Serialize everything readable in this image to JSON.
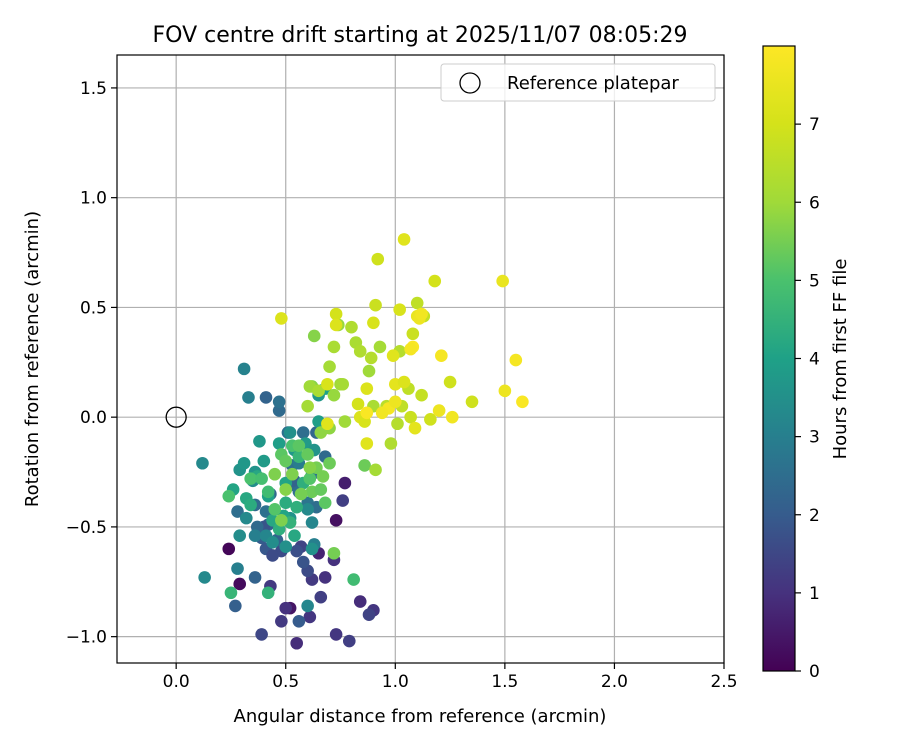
{
  "chart_data": {
    "type": "scatter",
    "title": "FOV centre drift starting at 2025/11/07 08:05:29",
    "xlabel": "Angular distance from reference (arcmin)",
    "ylabel": "Rotation from reference (arcmin)",
    "xlim": [
      -0.27,
      2.5
    ],
    "ylim": [
      -1.12,
      1.65
    ],
    "xticks": [
      0.0,
      0.5,
      1.0,
      1.5,
      2.0,
      2.5
    ],
    "xtick_labels": [
      "0.0",
      "0.5",
      "1.0",
      "1.5",
      "2.0",
      "2.5"
    ],
    "yticks": [
      -1.0,
      -0.5,
      0.0,
      0.5,
      1.0,
      1.5
    ],
    "ytick_labels": [
      "−1.0",
      "−0.5",
      "0.0",
      "0.5",
      "1.0",
      "1.5"
    ],
    "grid": true,
    "legend": {
      "placement": "top-right",
      "label": "Reference platepar"
    },
    "reference_point": {
      "x": 0.0,
      "y": 0.0
    },
    "colorbar": {
      "label": "Hours from first FF file",
      "range": [
        0,
        8
      ],
      "ticks": [
        0,
        1,
        2,
        3,
        4,
        5,
        6,
        7
      ],
      "tick_labels": [
        "0",
        "1",
        "2",
        "3",
        "4",
        "5",
        "6",
        "7"
      ],
      "colormap": "viridis"
    },
    "points": [
      [
        0.24,
        -0.6,
        0.1
      ],
      [
        0.29,
        -0.76,
        0.2
      ],
      [
        0.52,
        -0.87,
        0.4
      ],
      [
        0.55,
        -1.03,
        0.9
      ],
      [
        0.73,
        -0.47,
        0.3
      ],
      [
        0.77,
        -0.3,
        0.6
      ],
      [
        0.84,
        -0.84,
        0.9
      ],
      [
        0.9,
        -0.88,
        1.1
      ],
      [
        0.79,
        -1.02,
        1.3
      ],
      [
        0.73,
        -0.99,
        1.1
      ],
      [
        0.48,
        -0.93,
        1.2
      ],
      [
        0.5,
        -0.87,
        1.0
      ],
      [
        0.61,
        -0.91,
        1.1
      ],
      [
        0.65,
        -0.62,
        0.7
      ],
      [
        0.68,
        -0.73,
        1.0
      ],
      [
        0.72,
        -0.65,
        1.0
      ],
      [
        0.76,
        -0.38,
        1.3
      ],
      [
        0.62,
        -0.74,
        1.2
      ],
      [
        0.66,
        -0.82,
        1.3
      ],
      [
        0.88,
        -0.9,
        1.4
      ],
      [
        0.39,
        -0.99,
        1.5
      ],
      [
        0.48,
        -0.61,
        1.6
      ],
      [
        0.43,
        -0.77,
        1.2
      ],
      [
        0.57,
        -0.59,
        1.4
      ],
      [
        0.6,
        -0.7,
        1.6
      ],
      [
        0.58,
        -0.66,
        1.8
      ],
      [
        0.55,
        -0.61,
        1.7
      ],
      [
        0.56,
        -0.93,
        2.0
      ],
      [
        0.27,
        -0.86,
        2.1
      ],
      [
        0.36,
        -0.73,
        2.2
      ],
      [
        0.39,
        -0.55,
        2.0
      ],
      [
        0.41,
        -0.6,
        1.9
      ],
      [
        0.42,
        -0.49,
        2.1
      ],
      [
        0.46,
        -0.56,
        2.2
      ],
      [
        0.4,
        -0.5,
        1.8
      ],
      [
        0.44,
        -0.63,
        1.6
      ],
      [
        0.37,
        -0.5,
        2.4
      ],
      [
        0.28,
        -0.43,
        2.5
      ],
      [
        0.36,
        -0.4,
        2.4
      ],
      [
        0.41,
        -0.43,
        2.6
      ],
      [
        0.43,
        -0.35,
        2.3
      ],
      [
        0.52,
        -0.31,
        2.4
      ],
      [
        0.53,
        -0.22,
        2.6
      ],
      [
        0.54,
        -0.29,
        2.2
      ],
      [
        0.56,
        -0.34,
        2.5
      ],
      [
        0.6,
        -0.39,
        2.7
      ],
      [
        0.62,
        -0.26,
        2.6
      ],
      [
        0.64,
        -0.41,
        2.5
      ],
      [
        0.51,
        -0.07,
        2.6
      ],
      [
        0.56,
        -0.21,
        2.9
      ],
      [
        0.58,
        -0.07,
        2.5
      ],
      [
        0.64,
        -0.07,
        2.3
      ],
      [
        0.68,
        -0.18,
        2.4
      ],
      [
        0.41,
        0.09,
        2.2
      ],
      [
        0.47,
        0.03,
        2.4
      ],
      [
        0.47,
        0.07,
        2.6
      ],
      [
        0.33,
        0.09,
        3.0
      ],
      [
        0.31,
        0.22,
        3.1
      ],
      [
        0.12,
        -0.21,
        3.3
      ],
      [
        0.13,
        -0.73,
        3.3
      ],
      [
        0.28,
        -0.69,
        3.0
      ],
      [
        0.29,
        -0.54,
        3.4
      ],
      [
        0.32,
        -0.46,
        3.3
      ],
      [
        0.36,
        -0.54,
        3.0
      ],
      [
        0.41,
        -0.54,
        3.2
      ],
      [
        0.44,
        -0.57,
        3.4
      ],
      [
        0.5,
        -0.59,
        3.5
      ],
      [
        0.52,
        -0.46,
        3.6
      ],
      [
        0.6,
        -0.42,
        3.3
      ],
      [
        0.62,
        -0.48,
        3.2
      ],
      [
        0.63,
        -0.58,
        3.0
      ],
      [
        0.62,
        -0.6,
        3.5
      ],
      [
        0.6,
        -0.86,
        3.2
      ],
      [
        0.29,
        -0.24,
        3.6
      ],
      [
        0.31,
        -0.21,
        3.7
      ],
      [
        0.35,
        -0.29,
        3.4
      ],
      [
        0.36,
        -0.25,
        3.6
      ],
      [
        0.38,
        -0.11,
        3.7
      ],
      [
        0.4,
        -0.2,
        3.8
      ],
      [
        0.47,
        -0.12,
        3.9
      ],
      [
        0.52,
        -0.07,
        3.5
      ],
      [
        0.54,
        -0.15,
        3.7
      ],
      [
        0.59,
        -0.12,
        3.8
      ],
      [
        0.63,
        -0.15,
        3.6
      ],
      [
        0.65,
        -0.02,
        3.9
      ],
      [
        0.65,
        0.1,
        3.7
      ],
      [
        0.68,
        0.13,
        4.0
      ],
      [
        0.26,
        -0.33,
        4.1
      ],
      [
        0.32,
        -0.37,
        4.2
      ],
      [
        0.34,
        -0.4,
        4.3
      ],
      [
        0.37,
        -0.27,
        4.2
      ],
      [
        0.42,
        -0.36,
        4.0
      ],
      [
        0.44,
        -0.47,
        4.2
      ],
      [
        0.47,
        -0.51,
        4.4
      ],
      [
        0.49,
        -0.45,
        4.1
      ],
      [
        0.5,
        -0.39,
        4.3
      ],
      [
        0.5,
        -0.3,
        4.1
      ],
      [
        0.52,
        -0.48,
        4.5
      ],
      [
        0.55,
        -0.41,
        4.4
      ],
      [
        0.54,
        -0.54,
        4.2
      ],
      [
        0.56,
        -0.18,
        4.6
      ],
      [
        0.58,
        -0.3,
        4.4
      ],
      [
        0.25,
        -0.8,
        4.6
      ],
      [
        0.42,
        -0.8,
        4.5
      ],
      [
        0.81,
        -0.74,
        4.8
      ],
      [
        0.24,
        -0.36,
        5.0
      ],
      [
        0.34,
        -0.28,
        5.0
      ],
      [
        0.39,
        -0.28,
        4.9
      ],
      [
        0.42,
        -0.34,
        4.8
      ],
      [
        0.45,
        -0.42,
        5.1
      ],
      [
        0.48,
        -0.17,
        5.2
      ],
      [
        0.5,
        -0.2,
        5.3
      ],
      [
        0.53,
        -0.13,
        5.0
      ],
      [
        0.56,
        -0.13,
        5.2
      ],
      [
        0.6,
        -0.17,
        5.3
      ],
      [
        0.61,
        -0.28,
        5.1
      ],
      [
        0.62,
        -0.34,
        5.4
      ],
      [
        0.64,
        -0.23,
        5.5
      ],
      [
        0.66,
        -0.33,
        5.3
      ],
      [
        0.67,
        -0.27,
        5.5
      ],
      [
        0.68,
        -0.39,
        5.2
      ],
      [
        0.7,
        -0.21,
        5.4
      ],
      [
        0.72,
        -0.62,
        5.5
      ],
      [
        0.86,
        -0.22,
        5.4
      ],
      [
        0.45,
        -0.26,
        5.6
      ],
      [
        0.48,
        -0.47,
        5.6
      ],
      [
        0.5,
        -0.33,
        5.7
      ],
      [
        0.53,
        -0.26,
        5.6
      ],
      [
        0.57,
        -0.35,
        5.5
      ],
      [
        0.61,
        -0.23,
        5.7
      ],
      [
        0.62,
        0.14,
        5.7
      ],
      [
        0.63,
        0.37,
        5.7
      ],
      [
        0.66,
        -0.07,
        5.8
      ],
      [
        0.7,
        -0.05,
        5.8
      ],
      [
        0.72,
        0.1,
        5.9
      ],
      [
        0.74,
        0.42,
        5.9
      ],
      [
        0.75,
        0.15,
        6.0
      ],
      [
        0.77,
        -0.02,
        6.0
      ],
      [
        0.6,
        0.05,
        6.1
      ],
      [
        0.61,
        0.14,
        6.0
      ],
      [
        0.65,
        0.12,
        6.2
      ],
      [
        0.7,
        0.23,
        6.1
      ],
      [
        0.72,
        0.32,
        6.2
      ],
      [
        0.76,
        0.15,
        6.1
      ],
      [
        0.8,
        0.41,
        6.3
      ],
      [
        0.82,
        0.34,
        6.2
      ],
      [
        0.84,
        0.3,
        6.3
      ],
      [
        0.89,
        0.27,
        6.4
      ],
      [
        0.88,
        0.21,
        6.0
      ],
      [
        0.9,
        0.05,
        6.2
      ],
      [
        0.91,
        -0.24,
        6.1
      ],
      [
        0.98,
        -0.12,
        6.3
      ],
      [
        0.93,
        0.32,
        6.1
      ],
      [
        0.96,
        0.05,
        6.5
      ],
      [
        1.01,
        -0.03,
        6.4
      ],
      [
        1.03,
        0.05,
        6.6
      ],
      [
        1.02,
        0.3,
        6.4
      ],
      [
        1.06,
        0.13,
        6.6
      ],
      [
        1.07,
        0.0,
        6.8
      ],
      [
        1.08,
        0.38,
        6.8
      ],
      [
        1.1,
        0.52,
        6.6
      ],
      [
        1.13,
        0.46,
        6.7
      ],
      [
        1.12,
        0.1,
        6.7
      ],
      [
        1.16,
        -0.01,
        6.9
      ],
      [
        1.18,
        0.62,
        7.0
      ],
      [
        1.25,
        0.16,
        6.9
      ],
      [
        1.35,
        0.07,
        6.9
      ],
      [
        0.92,
        0.72,
        6.9
      ],
      [
        0.91,
        0.51,
        6.8
      ],
      [
        0.9,
        0.43,
        7.1
      ],
      [
        0.48,
        0.45,
        7.2
      ],
      [
        0.73,
        0.47,
        7.0
      ],
      [
        0.73,
        0.42,
        7.2
      ],
      [
        0.83,
        0.06,
        7.0
      ],
      [
        0.84,
        0.0,
        7.2
      ],
      [
        0.87,
        -0.12,
        7.3
      ],
      [
        0.87,
        0.13,
        7.2
      ],
      [
        0.86,
        -0.02,
        7.1
      ],
      [
        0.69,
        -0.03,
        7.3
      ],
      [
        0.69,
        0.15,
        7.1
      ],
      [
        0.99,
        0.28,
        7.3
      ],
      [
        1.0,
        0.15,
        7.4
      ],
      [
        1.04,
        0.16,
        7.2
      ],
      [
        1.02,
        0.49,
        7.1
      ],
      [
        1.04,
        0.81,
        7.3
      ],
      [
        1.09,
        -0.05,
        7.4
      ],
      [
        1.1,
        0.46,
        7.5
      ],
      [
        1.11,
        0.45,
        7.6
      ],
      [
        1.12,
        0.47,
        7.7
      ],
      [
        1.2,
        0.03,
        7.6
      ],
      [
        1.21,
        0.28,
        7.8
      ],
      [
        1.26,
        0.0,
        7.7
      ],
      [
        1.49,
        0.62,
        7.5
      ],
      [
        1.5,
        0.12,
        7.6
      ],
      [
        1.55,
        0.26,
        7.8
      ],
      [
        1.58,
        0.07,
        7.9
      ],
      [
        1.08,
        0.32,
        7.9
      ],
      [
        0.97,
        0.04,
        7.8
      ],
      [
        0.94,
        0.02,
        7.7
      ],
      [
        1.0,
        0.07,
        7.6
      ],
      [
        1.07,
        0.31,
        7.8
      ],
      [
        0.87,
        0.02,
        7.9
      ]
    ]
  }
}
